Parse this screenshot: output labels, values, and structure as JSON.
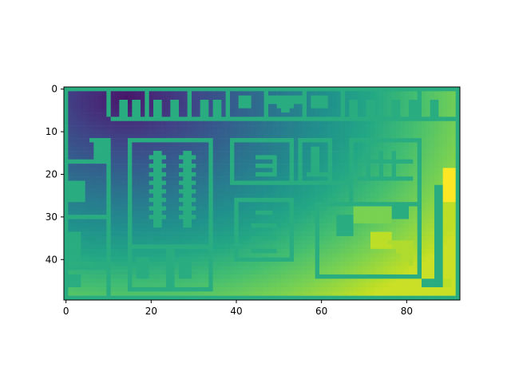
{
  "chart_data": {
    "type": "heatmap",
    "title": "",
    "xlabel": "",
    "ylabel": "",
    "grid_shape": [
      50,
      93
    ],
    "xlim": [
      -0.5,
      92.5
    ],
    "ylim": [
      49.5,
      -0.5
    ],
    "x_ticks": [
      0,
      20,
      40,
      60,
      80
    ],
    "y_ticks": [
      0,
      10,
      20,
      30,
      40
    ],
    "colormap": "viridis",
    "value_range": [
      0,
      1
    ],
    "wall_value": 0.62,
    "description_values": {
      "background_gradient": "low (dark purple) near top-left around column 15 row 3, rising to high (yellow-green) toward bottom-right",
      "walls": "constant value rendered as medium green",
      "peak": "bright yellow near columns 89-91, rows 19-26"
    }
  },
  "colors": {
    "wall": "#3fbc73",
    "peak": "#fde725",
    "min": "#440154"
  }
}
